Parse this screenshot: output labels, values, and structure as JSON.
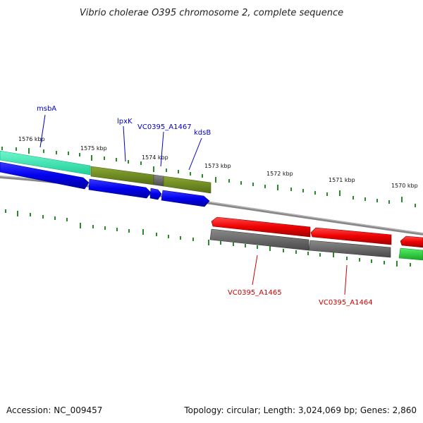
{
  "title": "Vibrio cholerae O395 chromosome 2, complete sequence",
  "footer": {
    "accession": "Accession: NC_009457",
    "topology": "Topology: circular; Length: 3,024,069 bp; Genes: 2,860"
  },
  "ruler": {
    "labels": [
      "1576 kbp",
      "1575 kbp",
      "1574 kbp",
      "1573 kbp",
      "1572 kbp",
      "1571 kbp",
      "1570 kbp"
    ]
  },
  "genes": {
    "msbA": "msbA",
    "lpxK": "lpxK",
    "a1467": "VC0395_A1467",
    "kdsB": "kdsB",
    "a1465": "VC0395_A1465",
    "a1464": "VC0395_A1464"
  },
  "colors": {
    "forward_gene": "#0000ee",
    "reverse_gene": "#ee0000",
    "forward_label": "#0000cc",
    "reverse_label": "#cc0000",
    "cog_cyan": "#2ee8b0",
    "cog_olive": "#6b8a1e",
    "cog_gray": "#666666",
    "cog_green": "#22cc33",
    "tick": "#2a8a2a",
    "backbone": "#888888"
  }
}
